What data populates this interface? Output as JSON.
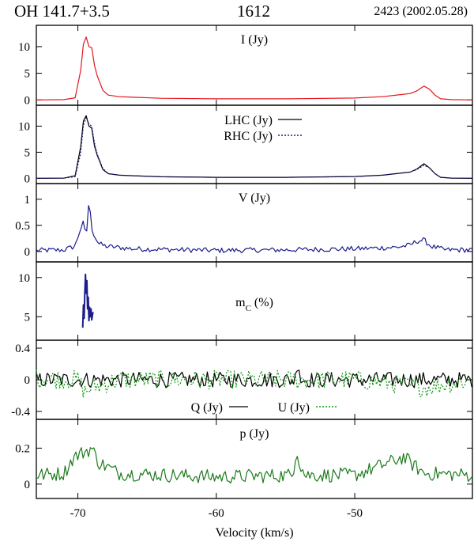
{
  "header": {
    "source": "OH 141.7+3.5",
    "frequency": "1612",
    "observation": "2423 (2002.05.28)"
  },
  "chart_data": {
    "type": "line",
    "xlabel": "Velocity (km/s)",
    "xlim": [
      -73.0,
      -41.5
    ],
    "xticks": [
      -70,
      -60,
      -50
    ],
    "xtick_labels": [
      "-70",
      "-60",
      "-50"
    ],
    "panels": [
      {
        "id": "I",
        "title": "I (Jy)",
        "ylim": [
          -1,
          14
        ],
        "yticks": [
          0,
          5,
          10
        ],
        "ytick_labels": [
          "0",
          "5",
          "10"
        ],
        "series": [
          {
            "name": "",
            "color": "#e8141e",
            "dash": "",
            "x": [
              -73,
              -71,
              -70.2,
              -69.8,
              -69.6,
              -69.4,
              -69.2,
              -69.0,
              -68.8,
              -68.6,
              -68.4,
              -68.2,
              -67.8,
              -67.0,
              -66.0,
              -64.0,
              -60.0,
              -55.0,
              -50.0,
              -48.0,
              -46.0,
              -45.5,
              -45.0,
              -44.6,
              -44.2,
              -43.8,
              -43.0,
              -41.5
            ],
            "y": [
              0.0,
              0.05,
              0.4,
              5.5,
              10.5,
              11.8,
              10.0,
              9.8,
              6.5,
              4.5,
              3.2,
              1.8,
              0.9,
              0.6,
              0.5,
              0.3,
              0.2,
              0.2,
              0.35,
              0.6,
              1.2,
              1.7,
              2.6,
              2.0,
              0.9,
              0.2,
              0.05,
              0.0
            ]
          }
        ]
      },
      {
        "id": "LR",
        "title": "",
        "ylim": [
          -1,
          14
        ],
        "yticks": [
          0,
          5,
          10
        ],
        "ytick_labels": [
          "0",
          "5",
          "10"
        ],
        "legend": [
          "LHC (Jy)",
          "RHC (Jy)"
        ],
        "series": [
          {
            "name": "LHC (Jy)",
            "color": "#000000",
            "dash": "",
            "x": [
              -73,
              -71,
              -70.2,
              -69.8,
              -69.6,
              -69.4,
              -69.2,
              -69.0,
              -68.8,
              -68.6,
              -68.4,
              -68.2,
              -67.8,
              -67.0,
              -66.0,
              -64.0,
              -60.0,
              -55.0,
              -50.0,
              -48.0,
              -46.0,
              -45.5,
              -45.0,
              -44.6,
              -44.2,
              -43.8,
              -43.0,
              -41.5
            ],
            "y": [
              0.0,
              0.05,
              0.5,
              6.0,
              11.0,
              12.0,
              10.0,
              9.6,
              6.2,
              4.4,
              3.1,
              1.7,
              0.9,
              0.6,
              0.5,
              0.3,
              0.2,
              0.2,
              0.35,
              0.6,
              1.2,
              1.8,
              2.8,
              2.0,
              0.9,
              0.2,
              0.05,
              0.0
            ]
          },
          {
            "name": "RHC (Jy)",
            "color": "#1c1c8c",
            "dash": "2,2",
            "x": [
              -73,
              -71,
              -70.2,
              -69.8,
              -69.6,
              -69.4,
              -69.2,
              -69.0,
              -68.8,
              -68.6,
              -68.4,
              -68.2,
              -67.8,
              -67.0,
              -66.0,
              -64.0,
              -60.0,
              -55.0,
              -50.0,
              -48.0,
              -46.0,
              -45.5,
              -45.0,
              -44.6,
              -44.2,
              -43.8,
              -43.0,
              -41.5
            ],
            "y": [
              0.0,
              0.05,
              0.3,
              4.8,
              10.2,
              11.6,
              10.4,
              10.0,
              6.8,
              4.6,
              3.3,
              1.9,
              0.9,
              0.6,
              0.5,
              0.3,
              0.2,
              0.2,
              0.35,
              0.6,
              1.2,
              1.7,
              2.5,
              2.0,
              0.9,
              0.2,
              0.05,
              0.0
            ]
          }
        ]
      },
      {
        "id": "V",
        "title": "V (Jy)",
        "ylim": [
          -0.2,
          1.3
        ],
        "yticks": [
          0,
          0.5,
          1
        ],
        "ytick_labels": [
          "0",
          "0.5",
          "1"
        ],
        "series": [
          {
            "name": "",
            "color": "#1c1c8c",
            "dash": "",
            "x": [
              -73,
              -71,
              -70.2,
              -69.8,
              -69.6,
              -69.4,
              -69.2,
              -69.0,
              -68.8,
              -68.5,
              -68.0,
              -66,
              -60,
              -55,
              -50,
              -47,
              -46,
              -45.5,
              -45,
              -44.5,
              -43.5,
              -41.5
            ],
            "y": [
              0.02,
              0.03,
              0.1,
              0.45,
              0.55,
              0.25,
              1.0,
              0.45,
              0.3,
              0.15,
              0.1,
              0.05,
              0.02,
              0.03,
              0.05,
              0.08,
              0.12,
              0.2,
              0.22,
              0.1,
              0.03,
              0.03
            ],
            "noise": 0.05
          }
        ]
      },
      {
        "id": "mC",
        "title": "mC (%)",
        "ylim": [
          2,
          12
        ],
        "yticks": [
          5,
          10
        ],
        "ytick_labels": [
          "5",
          "10"
        ],
        "series": [
          {
            "name": "",
            "color": "#1c1c8c",
            "dash": "",
            "x": [
              -69.65,
              -69.6,
              -69.55,
              -69.5,
              -69.45,
              -69.4,
              -69.35,
              -69.3,
              -69.25,
              -69.2,
              -69.15,
              -69.1,
              -69.05,
              -69.0,
              -68.95,
              -68.9
            ],
            "y": [
              3.6,
              6.5,
              4.8,
              7.8,
              10.4,
              8.0,
              9.6,
              6.0,
              7.5,
              4.5,
              6.2,
              5.0,
              6.0,
              4.6,
              5.2,
              5.6
            ]
          }
        ]
      },
      {
        "id": "QU",
        "title": "",
        "ylim": [
          -0.5,
          0.5
        ],
        "yticks": [
          -0.4,
          0,
          0.4
        ],
        "ytick_labels": [
          "-0.4",
          "0",
          "0.4"
        ],
        "legend": [
          "Q (Jy)",
          "U (Jy)"
        ],
        "series": [
          {
            "name": "Q (Jy)",
            "color": "#000000",
            "dash": "",
            "x": [
              -73,
              -69,
              -54.3,
              -54.1,
              -53.9,
              -41.5
            ],
            "y": [
              0.0,
              0.0,
              0.0,
              0.28,
              0.0,
              0.0
            ],
            "noise": 0.1
          },
          {
            "name": "U (Jy)",
            "color": "#119911",
            "dash": "2,2",
            "x": [
              -73,
              -70,
              -69.5,
              -69,
              -67,
              -60,
              -50,
              -47,
              -45,
              -41.5
            ],
            "y": [
              0.02,
              0.0,
              -0.15,
              -0.1,
              0.0,
              0.0,
              0.0,
              -0.05,
              -0.1,
              0.0
            ],
            "noise": 0.12
          }
        ]
      },
      {
        "id": "p",
        "title": "p (Jy)",
        "ylim": [
          -0.08,
          0.36
        ],
        "yticks": [
          0,
          0.2
        ],
        "ytick_labels": [
          "0",
          "0.2"
        ],
        "series": [
          {
            "name": "",
            "color": "#1c7a1c",
            "dash": "",
            "x": [
              -73,
              -71,
              -70.3,
              -69.5,
              -69.0,
              -68.5,
              -67,
              -60,
              -54.5,
              -54.2,
              -54.0,
              -53.6,
              -50,
              -47.5,
              -46.5,
              -46.0,
              -45,
              -41.5
            ],
            "y": [
              0.05,
              0.06,
              0.15,
              0.18,
              0.2,
              0.12,
              0.06,
              0.04,
              0.05,
              0.2,
              0.12,
              0.05,
              0.05,
              0.12,
              0.15,
              0.12,
              0.06,
              0.05
            ],
            "noise": 0.04
          }
        ]
      }
    ]
  }
}
